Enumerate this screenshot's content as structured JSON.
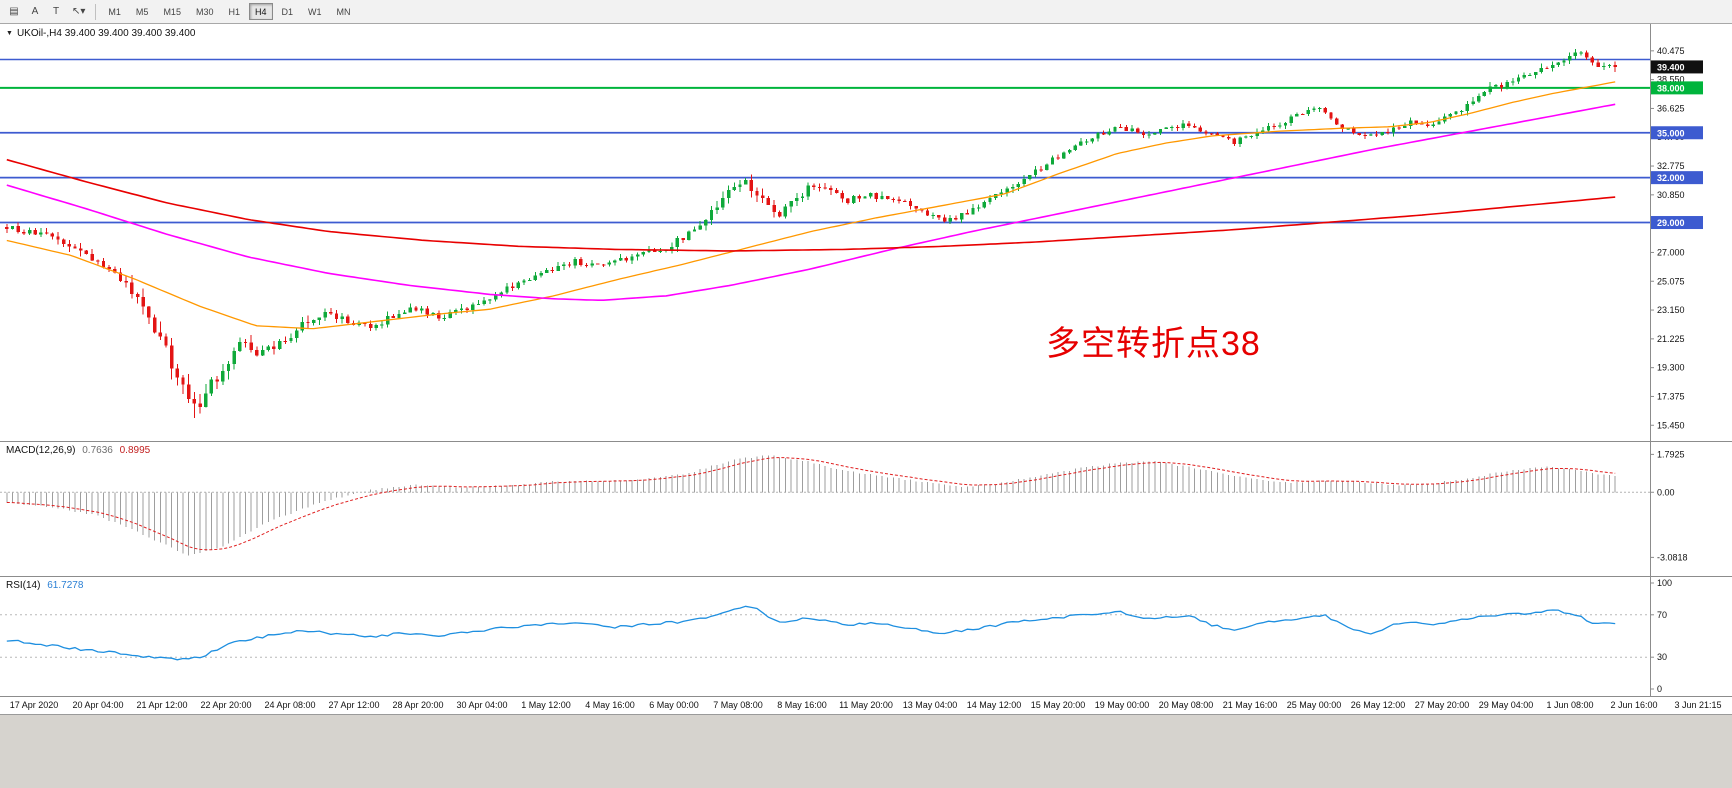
{
  "toolbar": {
    "left_tools": [
      {
        "name": "chart-window-icon",
        "glyph": "▤"
      },
      {
        "name": "cursor-a-button",
        "glyph": "A"
      },
      {
        "name": "text-tool-button",
        "glyph": "T"
      },
      {
        "name": "crosshair-tool-dropdown",
        "glyph": "↖▾"
      }
    ],
    "timeframes": [
      "M1",
      "M5",
      "M15",
      "M30",
      "H1",
      "H4",
      "D1",
      "W1",
      "MN"
    ],
    "active_timeframe": "H4"
  },
  "main_chart": {
    "symbol_header": "UKOil-,H4  39.400 39.400 39.400 39.400",
    "annotation": {
      "text": "多空转折点38",
      "color": "#e60000"
    },
    "candle_up_color": "#0fa93a",
    "candle_down_color": "#e31414",
    "price_axis": {
      "ticks": [
        "40.475",
        "38.550",
        "36.625",
        "34.700",
        "32.775",
        "30.850",
        "28.925",
        "27.000",
        "25.075",
        "23.150",
        "21.225",
        "19.300",
        "17.375",
        "15.450"
      ]
    },
    "price_tags": [
      {
        "label": "39.400",
        "price": 39.4,
        "bg": "#101010"
      },
      {
        "label": "38.000",
        "price": 38.0,
        "bg": "#00b43c"
      },
      {
        "label": "35.000",
        "price": 35.0,
        "bg": "#3d5bd0"
      },
      {
        "label": "32.000",
        "price": 32.0,
        "bg": "#3d5bd0"
      },
      {
        "label": "29.000",
        "price": 29.0,
        "bg": "#3d5bd0"
      }
    ]
  },
  "chart_data": {
    "type": "candlestick",
    "symbol": "UKOil-",
    "timeframe": "H4",
    "bars": 284,
    "last_price": 39.4,
    "visible_low": 15.95,
    "visible_high": 40.47,
    "ylim": [
      15.2,
      41.4
    ],
    "x_labels": [
      "17 Apr 2020",
      "20 Apr 04:00",
      "21 Apr 12:00",
      "22 Apr 20:00",
      "24 Apr 08:00",
      "27 Apr 12:00",
      "28 Apr 20:00",
      "30 Apr 04:00",
      "1 May 12:00",
      "4 May 16:00",
      "6 May 00:00",
      "7 May 08:00",
      "8 May 16:00",
      "11 May 20:00",
      "13 May 04:00",
      "14 May 12:00",
      "15 May 20:00",
      "19 May 00:00",
      "20 May 08:00",
      "21 May 16:00",
      "25 May 00:00",
      "26 May 12:00",
      "27 May 20:00",
      "29 May 04:00",
      "1 Jun 08:00",
      "2 Jun 16:00",
      "3 Jun 21:15"
    ],
    "hlines": [
      {
        "price": 39.9,
        "color": "#3d5bd0",
        "width": 1.5
      },
      {
        "price": 38.0,
        "color": "#00b43c",
        "width": 2
      },
      {
        "price": 35.0,
        "color": "#3d5bd0",
        "width": 1.8
      },
      {
        "price": 32.0,
        "color": "#3d5bd0",
        "width": 1.8
      },
      {
        "price": 29.0,
        "color": "#3d5bd0",
        "width": 1.8
      }
    ],
    "close_path_anchors": [
      [
        0,
        28.7
      ],
      [
        4,
        28.3
      ],
      [
        8,
        28.0
      ],
      [
        12,
        27.3
      ],
      [
        16,
        26.3
      ],
      [
        20,
        25.2
      ],
      [
        24,
        23.3
      ],
      [
        27,
        21.2
      ],
      [
        30,
        18.6
      ],
      [
        33,
        16.6
      ],
      [
        35,
        17.6
      ],
      [
        38,
        19.3
      ],
      [
        41,
        21.0
      ],
      [
        44,
        20.2
      ],
      [
        48,
        20.8
      ],
      [
        52,
        22.3
      ],
      [
        56,
        23.0
      ],
      [
        60,
        22.4
      ],
      [
        64,
        21.9
      ],
      [
        68,
        22.8
      ],
      [
        72,
        23.3
      ],
      [
        76,
        22.6
      ],
      [
        80,
        23.1
      ],
      [
        84,
        23.8
      ],
      [
        88,
        24.6
      ],
      [
        92,
        25.2
      ],
      [
        96,
        25.9
      ],
      [
        100,
        26.4
      ],
      [
        104,
        26.1
      ],
      [
        108,
        26.5
      ],
      [
        112,
        26.9
      ],
      [
        116,
        27.3
      ],
      [
        120,
        28.2
      ],
      [
        124,
        29.6
      ],
      [
        127,
        31.3
      ],
      [
        130,
        31.8
      ],
      [
        133,
        30.4
      ],
      [
        136,
        29.4
      ],
      [
        139,
        30.6
      ],
      [
        142,
        31.6
      ],
      [
        145,
        31.1
      ],
      [
        148,
        30.4
      ],
      [
        151,
        30.9
      ],
      [
        154,
        30.6
      ],
      [
        158,
        30.3
      ],
      [
        162,
        29.6
      ],
      [
        165,
        29.1
      ],
      [
        168,
        29.5
      ],
      [
        172,
        30.3
      ],
      [
        176,
        31.2
      ],
      [
        180,
        32.2
      ],
      [
        184,
        33.2
      ],
      [
        188,
        34.3
      ],
      [
        192,
        34.9
      ],
      [
        196,
        35.4
      ],
      [
        200,
        34.9
      ],
      [
        204,
        35.3
      ],
      [
        208,
        35.6
      ],
      [
        212,
        34.9
      ],
      [
        216,
        34.4
      ],
      [
        220,
        35.1
      ],
      [
        224,
        35.6
      ],
      [
        228,
        36.3
      ],
      [
        231,
        36.6
      ],
      [
        235,
        35.4
      ],
      [
        239,
        34.8
      ],
      [
        243,
        35.2
      ],
      [
        247,
        35.8
      ],
      [
        251,
        35.5
      ],
      [
        255,
        36.3
      ],
      [
        259,
        37.6
      ],
      [
        263,
        38.2
      ],
      [
        267,
        38.7
      ],
      [
        271,
        39.4
      ],
      [
        274,
        40.0
      ],
      [
        277,
        40.3
      ],
      [
        280,
        39.3
      ],
      [
        283,
        39.4
      ]
    ],
    "volatility_anchors": [
      [
        0,
        0.5
      ],
      [
        20,
        0.8
      ],
      [
        28,
        1.4
      ],
      [
        36,
        1.2
      ],
      [
        44,
        0.9
      ],
      [
        56,
        0.7
      ],
      [
        70,
        0.55
      ],
      [
        90,
        0.5
      ],
      [
        110,
        0.5
      ],
      [
        124,
        0.8
      ],
      [
        133,
        0.9
      ],
      [
        140,
        0.7
      ],
      [
        160,
        0.5
      ],
      [
        180,
        0.55
      ],
      [
        200,
        0.5
      ],
      [
        220,
        0.45
      ],
      [
        240,
        0.5
      ],
      [
        256,
        0.6
      ],
      [
        268,
        0.55
      ],
      [
        283,
        0.45
      ]
    ],
    "ma_lines": [
      {
        "name": "ma-fast-orange",
        "color": "#ff9800",
        "width": 1.3,
        "points": [
          [
            0,
            27.8
          ],
          [
            0.04,
            26.8
          ],
          [
            0.08,
            25.2
          ],
          [
            0.12,
            23.4
          ],
          [
            0.155,
            22.1
          ],
          [
            0.19,
            21.9
          ],
          [
            0.23,
            22.4
          ],
          [
            0.27,
            22.9
          ],
          [
            0.3,
            23.2
          ],
          [
            0.34,
            24.1
          ],
          [
            0.38,
            25.2
          ],
          [
            0.42,
            26.2
          ],
          [
            0.46,
            27.3
          ],
          [
            0.5,
            28.4
          ],
          [
            0.54,
            29.3
          ],
          [
            0.58,
            30.1
          ],
          [
            0.62,
            30.9
          ],
          [
            0.655,
            32.3
          ],
          [
            0.69,
            33.6
          ],
          [
            0.72,
            34.3
          ],
          [
            0.75,
            34.8
          ],
          [
            0.79,
            35.1
          ],
          [
            0.83,
            35.3
          ],
          [
            0.86,
            35.4
          ],
          [
            0.885,
            35.7
          ],
          [
            0.91,
            36.3
          ],
          [
            0.935,
            37.0
          ],
          [
            0.96,
            37.6
          ],
          [
            0.98,
            38.0
          ],
          [
            1,
            38.4
          ]
        ]
      },
      {
        "name": "ma-mid-magenta",
        "color": "#ff00ff",
        "width": 1.6,
        "points": [
          [
            0,
            31.5
          ],
          [
            0.05,
            29.9
          ],
          [
            0.1,
            28.2
          ],
          [
            0.15,
            26.7
          ],
          [
            0.2,
            25.6
          ],
          [
            0.25,
            24.8
          ],
          [
            0.3,
            24.2
          ],
          [
            0.34,
            23.9
          ],
          [
            0.37,
            23.8
          ],
          [
            0.41,
            24.1
          ],
          [
            0.45,
            24.8
          ],
          [
            0.5,
            25.9
          ],
          [
            0.55,
            27.2
          ],
          [
            0.6,
            28.4
          ],
          [
            0.65,
            29.5
          ],
          [
            0.7,
            30.6
          ],
          [
            0.75,
            31.7
          ],
          [
            0.8,
            32.8
          ],
          [
            0.85,
            33.9
          ],
          [
            0.9,
            34.9
          ],
          [
            0.95,
            35.9
          ],
          [
            1,
            36.9
          ]
        ]
      },
      {
        "name": "ma-slow-red",
        "color": "#e80000",
        "width": 1.6,
        "points": [
          [
            0,
            33.2
          ],
          [
            0.05,
            31.7
          ],
          [
            0.1,
            30.3
          ],
          [
            0.15,
            29.2
          ],
          [
            0.2,
            28.4
          ],
          [
            0.26,
            27.8
          ],
          [
            0.32,
            27.4
          ],
          [
            0.38,
            27.2
          ],
          [
            0.45,
            27.1
          ],
          [
            0.52,
            27.2
          ],
          [
            0.58,
            27.4
          ],
          [
            0.64,
            27.7
          ],
          [
            0.7,
            28.1
          ],
          [
            0.76,
            28.5
          ],
          [
            0.82,
            29.0
          ],
          [
            0.88,
            29.5
          ],
          [
            0.94,
            30.1
          ],
          [
            1,
            30.7
          ]
        ]
      }
    ],
    "macd": {
      "label": "MACD(12,26,9)",
      "value_main": "0.7636",
      "value_signal": "0.8995",
      "ylim": [
        -3.0818,
        1.7925
      ],
      "axis_labels": [
        "1.7925",
        "0.00",
        "-3.0818"
      ],
      "hist_anchors": [
        [
          0,
          -0.5
        ],
        [
          8,
          -0.7
        ],
        [
          16,
          -1.1
        ],
        [
          24,
          -2.0
        ],
        [
          32,
          -3.0
        ],
        [
          38,
          -2.6
        ],
        [
          46,
          -1.4
        ],
        [
          56,
          -0.4
        ],
        [
          64,
          0.1
        ],
        [
          72,
          0.35
        ],
        [
          80,
          0.25
        ],
        [
          88,
          0.3
        ],
        [
          96,
          0.5
        ],
        [
          104,
          0.55
        ],
        [
          112,
          0.6
        ],
        [
          120,
          0.9
        ],
        [
          128,
          1.55
        ],
        [
          134,
          1.75
        ],
        [
          140,
          1.5
        ],
        [
          148,
          1.0
        ],
        [
          156,
          0.7
        ],
        [
          162,
          0.45
        ],
        [
          168,
          0.25
        ],
        [
          174,
          0.4
        ],
        [
          180,
          0.7
        ],
        [
          188,
          1.1
        ],
        [
          196,
          1.4
        ],
        [
          202,
          1.45
        ],
        [
          208,
          1.2
        ],
        [
          214,
          0.9
        ],
        [
          220,
          0.6
        ],
        [
          226,
          0.45
        ],
        [
          232,
          0.55
        ],
        [
          238,
          0.5
        ],
        [
          244,
          0.35
        ],
        [
          250,
          0.4
        ],
        [
          256,
          0.6
        ],
        [
          262,
          0.9
        ],
        [
          268,
          1.15
        ],
        [
          272,
          1.2
        ],
        [
          276,
          1.05
        ],
        [
          280,
          0.85
        ],
        [
          283,
          0.76
        ]
      ]
    },
    "rsi": {
      "label": "RSI(14)",
      "value": "61.7278",
      "levels": [
        70,
        30
      ],
      "ylim": [
        0,
        100
      ],
      "axis_labels": [
        "100",
        "70",
        "30",
        "0"
      ],
      "anchors": [
        [
          0,
          46
        ],
        [
          6,
          42
        ],
        [
          12,
          38
        ],
        [
          18,
          35
        ],
        [
          24,
          31
        ],
        [
          30,
          28
        ],
        [
          34,
          30
        ],
        [
          40,
          44
        ],
        [
          46,
          50
        ],
        [
          52,
          55
        ],
        [
          58,
          52
        ],
        [
          64,
          49
        ],
        [
          70,
          53
        ],
        [
          76,
          50
        ],
        [
          82,
          54
        ],
        [
          88,
          58
        ],
        [
          94,
          61
        ],
        [
          100,
          63
        ],
        [
          106,
          58
        ],
        [
          112,
          61
        ],
        [
          118,
          63
        ],
        [
          124,
          68
        ],
        [
          128,
          75
        ],
        [
          131,
          78
        ],
        [
          136,
          62
        ],
        [
          140,
          66
        ],
        [
          144,
          64
        ],
        [
          148,
          60
        ],
        [
          152,
          62
        ],
        [
          156,
          60
        ],
        [
          160,
          56
        ],
        [
          164,
          52
        ],
        [
          168,
          55
        ],
        [
          172,
          58
        ],
        [
          176,
          62
        ],
        [
          180,
          65
        ],
        [
          184,
          67
        ],
        [
          188,
          69
        ],
        [
          192,
          71
        ],
        [
          196,
          73
        ],
        [
          200,
          66
        ],
        [
          204,
          68
        ],
        [
          208,
          69
        ],
        [
          212,
          60
        ],
        [
          216,
          56
        ],
        [
          220,
          62
        ],
        [
          224,
          64
        ],
        [
          228,
          67
        ],
        [
          232,
          69
        ],
        [
          236,
          58
        ],
        [
          240,
          53
        ],
        [
          244,
          60
        ],
        [
          248,
          63
        ],
        [
          252,
          61
        ],
        [
          256,
          65
        ],
        [
          260,
          69
        ],
        [
          264,
          70
        ],
        [
          268,
          72
        ],
        [
          272,
          75
        ],
        [
          276,
          70
        ],
        [
          279,
          63
        ],
        [
          283,
          62
        ]
      ]
    }
  }
}
